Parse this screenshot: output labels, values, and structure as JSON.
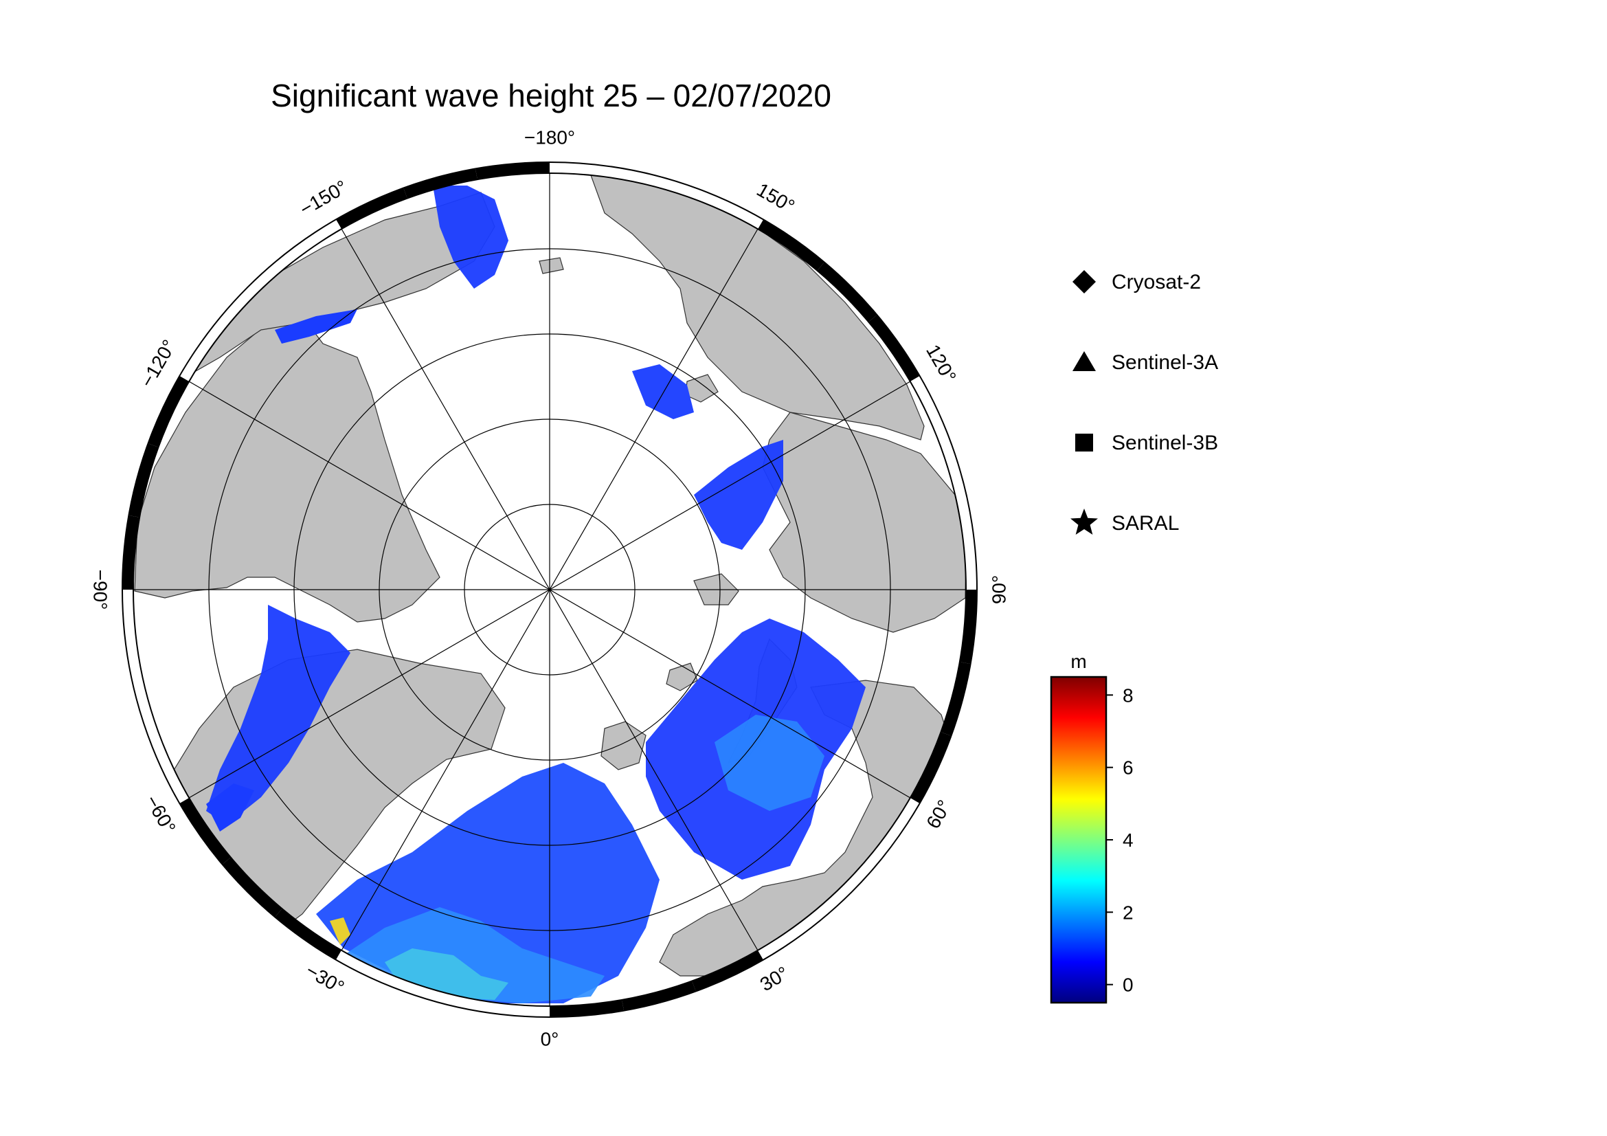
{
  "title": "Significant wave height 25 – 02/07/2020",
  "longitude_labels": [
    {
      "lon": -180,
      "text": "−180°"
    },
    {
      "lon": 150,
      "text": "150°"
    },
    {
      "lon": 120,
      "text": "120°"
    },
    {
      "lon": 90,
      "text": "90°"
    },
    {
      "lon": 60,
      "text": "60°"
    },
    {
      "lon": 30,
      "text": "30°"
    },
    {
      "lon": 0,
      "text": "0°"
    },
    {
      "lon": -30,
      "text": "−30°"
    },
    {
      "lon": -60,
      "text": "−60°"
    },
    {
      "lon": -90,
      "text": "−90°"
    },
    {
      "lon": -120,
      "text": "−120°"
    },
    {
      "lon": -150,
      "text": "−150°"
    }
  ],
  "legend": {
    "items": [
      {
        "symbol": "diamond",
        "label": "Cryosat-2"
      },
      {
        "symbol": "triangle",
        "label": "Sentinel-3A"
      },
      {
        "symbol": "square",
        "label": "Sentinel-3B"
      },
      {
        "symbol": "star",
        "label": "SARAL"
      }
    ]
  },
  "colorbar": {
    "unit": "m",
    "min": -0.5,
    "max": 8.5,
    "ticks": [
      {
        "value": 0,
        "text": "0"
      },
      {
        "value": 2,
        "text": "2"
      },
      {
        "value": 4,
        "text": "4"
      },
      {
        "value": 6,
        "text": "6"
      },
      {
        "value": 8,
        "text": "8"
      }
    ],
    "colors": [
      "#00007f",
      "#0000ff",
      "#007fff",
      "#00ffff",
      "#7fff7f",
      "#ffff00",
      "#ff7f00",
      "#ff0000",
      "#7f0000"
    ]
  },
  "colors": {
    "land": "#c0c0c0",
    "ice": "#ffffff",
    "frame": "#000000"
  }
}
